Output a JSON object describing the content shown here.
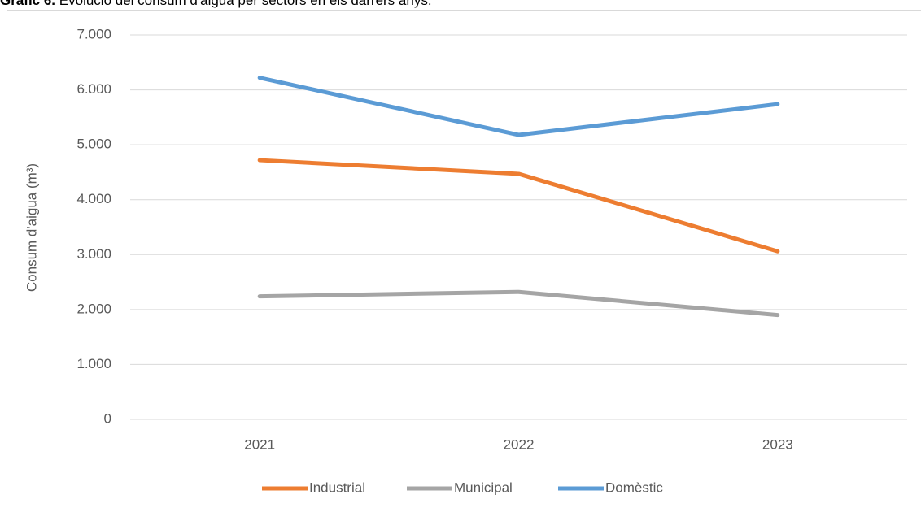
{
  "chart_data": {
    "type": "line",
    "title_prefix": "Gràfic 6.",
    "title": "Evolució del consum d'aigua per sectors en els darrers anys.",
    "y_label": "Consum d'aigua (m³)",
    "categories": [
      "2021",
      "2022",
      "2023"
    ],
    "series": [
      {
        "name": "Industrial",
        "color": "#ed7d31",
        "values": [
          4720,
          4470,
          3060
        ]
      },
      {
        "name": "Municipal",
        "color": "#a5a5a5",
        "values": [
          2240,
          2320,
          1900
        ]
      },
      {
        "name": "Domèstic",
        "color": "#5b9bd5",
        "values": [
          6220,
          5180,
          5740
        ]
      }
    ],
    "ylim": [
      0,
      7000
    ],
    "yticks": [
      0,
      {
        "value": 1000,
        "label": "1.000"
      },
      {
        "value": 2000,
        "label": "2.000"
      },
      {
        "value": 3000,
        "label": "3.000"
      },
      {
        "value": 4000,
        "label": "4.000"
      },
      {
        "value": 5000,
        "label": "5.000"
      },
      {
        "value": 6000,
        "label": "6.000"
      },
      {
        "value": 7000,
        "label": "7.000"
      }
    ],
    "grid": true,
    "legend": "bottom"
  }
}
